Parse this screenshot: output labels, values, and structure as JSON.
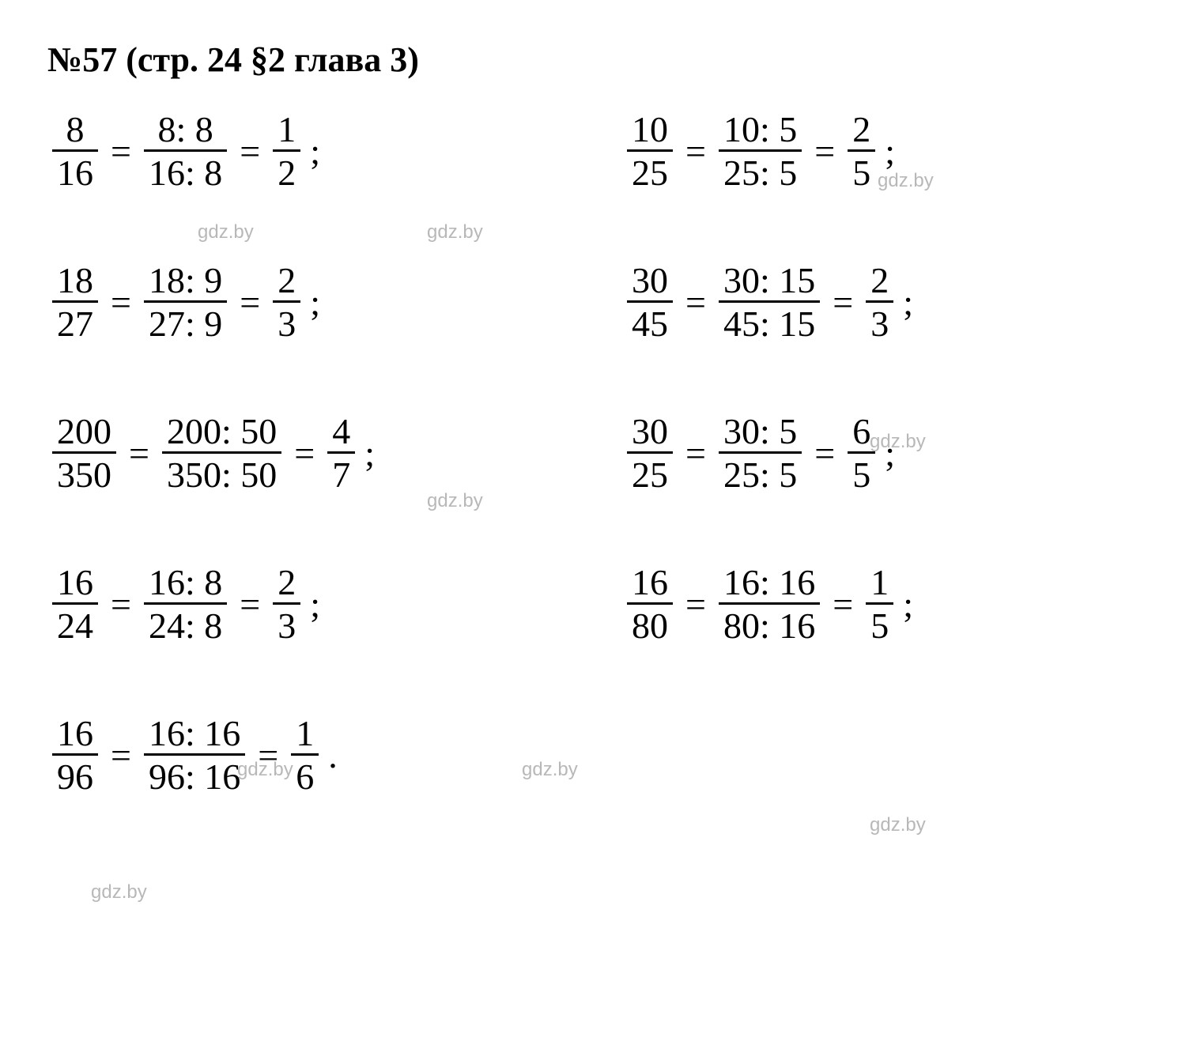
{
  "title": "№57 (стр. 24 §2 глава 3)",
  "watermark_text": "gdz.by",
  "watermark_color": "#b8b8b8",
  "text_color": "#000000",
  "background_color": "#ffffff",
  "font_family": "Times New Roman",
  "title_fontsize": 44,
  "equation_fontsize": 46,
  "fraction_bar_width": 3,
  "equations": {
    "left": [
      {
        "a_num": "8",
        "a_den": "16",
        "b_num": "8: 8",
        "b_den": "16: 8",
        "c_num": "1",
        "c_den": "2",
        "end": ";"
      },
      {
        "a_num": "18",
        "a_den": "27",
        "b_num": "18: 9",
        "b_den": "27: 9",
        "c_num": "2",
        "c_den": "3",
        "end": ";"
      },
      {
        "a_num": "200",
        "a_den": "350",
        "b_num": "200: 50",
        "b_den": "350: 50",
        "c_num": "4",
        "c_den": "7",
        "end": ";"
      },
      {
        "a_num": "16",
        "a_den": "24",
        "b_num": "16: 8",
        "b_den": "24: 8",
        "c_num": "2",
        "c_den": "3",
        "end": ";"
      },
      {
        "a_num": "16",
        "a_den": "96",
        "b_num": "16: 16",
        "b_den": "96: 16",
        "c_num": "1",
        "c_den": "6",
        "end": "."
      }
    ],
    "right": [
      {
        "a_num": "10",
        "a_den": "25",
        "b_num": "10: 5",
        "b_den": "25: 5",
        "c_num": "2",
        "c_den": "5",
        "end": ";"
      },
      {
        "a_num": "30",
        "a_den": "45",
        "b_num": "30: 15",
        "b_den": "45: 15",
        "c_num": "2",
        "c_den": "3",
        "end": ";"
      },
      {
        "a_num": "30",
        "a_den": "25",
        "b_num": "30: 5",
        "b_den": "25: 5",
        "c_num": "6",
        "c_den": "5",
        "end": ";"
      },
      {
        "a_num": "16",
        "a_den": "80",
        "b_num": "16: 16",
        "b_den": "80: 16",
        "c_num": "1",
        "c_den": "5",
        "end": ";"
      }
    ]
  },
  "eq_sign": "="
}
